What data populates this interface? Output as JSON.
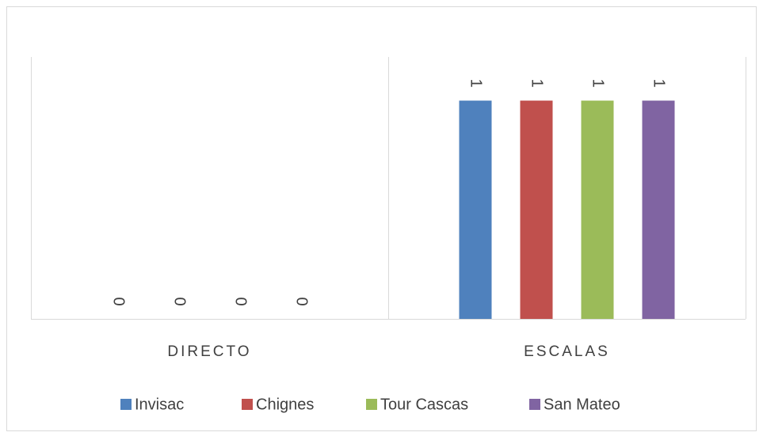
{
  "chart_data": {
    "type": "bar",
    "categories": [
      "DIRECTO",
      "ESCALAS"
    ],
    "series": [
      {
        "name": "Invisac",
        "color": "#4f81bd",
        "values": [
          0,
          1
        ]
      },
      {
        "name": "Chignes",
        "color": "#c0504d",
        "values": [
          0,
          1
        ]
      },
      {
        "name": "Tour Cascas",
        "color": "#9bbb59",
        "values": [
          0,
          1
        ]
      },
      {
        "name": "San Mateo",
        "color": "#8064a2",
        "values": [
          0,
          1
        ]
      }
    ],
    "ylim": [
      0,
      1.2
    ],
    "legend": "bottom"
  }
}
